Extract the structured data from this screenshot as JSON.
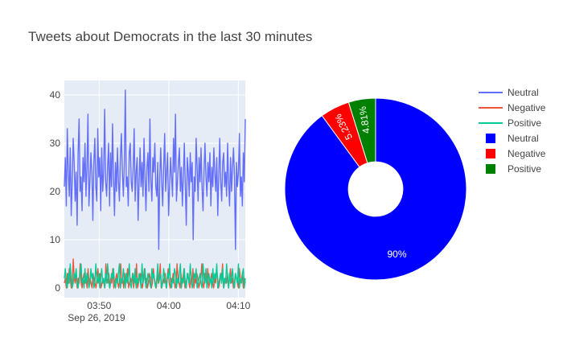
{
  "title": "Tweets about Democrats in the last 30 minutes",
  "colors": {
    "Neutral_line": "#636efa",
    "Negative_line": "#ef553b",
    "Positive_line": "#00cc96",
    "Neutral_pie": "#0000ff",
    "Negative_pie": "#ff0000",
    "Positive_pie": "#008000"
  },
  "legend": {
    "placement": "top-right",
    "line_entries": [
      "Neutral",
      "Negative",
      "Positive"
    ],
    "pie_entries": [
      "Neutral",
      "Negative",
      "Positive"
    ]
  },
  "chart_data": [
    {
      "type": "line",
      "title": "",
      "x_start": "03:45",
      "x_end": "04:11",
      "x_ticks": [
        "03:50",
        "04:00",
        "04:10"
      ],
      "x_date": "Sep 26, 2019",
      "y_ticks": [
        "0",
        "10",
        "20",
        "30",
        "40"
      ],
      "ylim": [
        -2,
        43
      ],
      "grid": true,
      "series": [
        {
          "name": "Neutral",
          "approx_mean": 22,
          "approx_min": 8,
          "approx_max": 41,
          "values": [
            21,
            27,
            17,
            33,
            24,
            19,
            29,
            15,
            22,
            31,
            26,
            18,
            24,
            13,
            28,
            35,
            20,
            23,
            16,
            27,
            22,
            30,
            19,
            25,
            36,
            17,
            22,
            28,
            24,
            14,
            26,
            31,
            21,
            18,
            33,
            23,
            27,
            16,
            29,
            20,
            24,
            37,
            22,
            19,
            25,
            30,
            17,
            28,
            21,
            34,
            23,
            15,
            26,
            20,
            29,
            22,
            18,
            27,
            32,
            24,
            19,
            26,
            41,
            21,
            23,
            17,
            28,
            30,
            22,
            20,
            25,
            33,
            18,
            24,
            27,
            14,
            22,
            29,
            21,
            26,
            19,
            31,
            23,
            16,
            25,
            28,
            20,
            35,
            22,
            18,
            27,
            24,
            30,
            21,
            19,
            26,
            8,
            23,
            29,
            22,
            17,
            25,
            32,
            20,
            24,
            28,
            15,
            21,
            27,
            23,
            19,
            31,
            24,
            36,
            18,
            22,
            26,
            29,
            20,
            25,
            17,
            23,
            30,
            21,
            13,
            27,
            24,
            19,
            28,
            22,
            26,
            10,
            23,
            20,
            31,
            25,
            18,
            27,
            22,
            29,
            21,
            16,
            24,
            30,
            23,
            19,
            26,
            22,
            28,
            17,
            25,
            21,
            29,
            24,
            20,
            27,
            15,
            23,
            31,
            22,
            18,
            26,
            28,
            21,
            24,
            19,
            30,
            22,
            17,
            27,
            20,
            25,
            29,
            23,
            8,
            26,
            21,
            24,
            32,
            19,
            23,
            17,
            28,
            22,
            35
          ]
        },
        {
          "name": "Negative",
          "approx_mean": 1.5,
          "approx_max": 6,
          "values": [
            1,
            2,
            0,
            3,
            1,
            4,
            2,
            0,
            1,
            6,
            2,
            1,
            3,
            0,
            2,
            1,
            5,
            1,
            0,
            2,
            3,
            1,
            2,
            0,
            4,
            1,
            2,
            1,
            0,
            3,
            2,
            1,
            0,
            2,
            4,
            1,
            3,
            0,
            1,
            2,
            1,
            0,
            5,
            2,
            1,
            3,
            0,
            2,
            1,
            4,
            0,
            1,
            2,
            3,
            1,
            0,
            2,
            5,
            1,
            2,
            0,
            3,
            1,
            2,
            4,
            0,
            1,
            2,
            1,
            3,
            0,
            2,
            1,
            5,
            0,
            1,
            2,
            3,
            1,
            0,
            2,
            4,
            1,
            2,
            0,
            1,
            3,
            2,
            0,
            1,
            4,
            2,
            1,
            0,
            3,
            1,
            2,
            5,
            0,
            1,
            2,
            1,
            3,
            0,
            2,
            4,
            1,
            0,
            2,
            1,
            3,
            2,
            0,
            1,
            5,
            2,
            1,
            0,
            3,
            1,
            2,
            4,
            0,
            1,
            2,
            3,
            1,
            0,
            2,
            1,
            4,
            0,
            2,
            1,
            3,
            2,
            0,
            1,
            2,
            5,
            1,
            0,
            3,
            2,
            1,
            4,
            0,
            1,
            2,
            3,
            1,
            0,
            2,
            1,
            4,
            2,
            0,
            1,
            3,
            2,
            5,
            0,
            1,
            2,
            1,
            3,
            0,
            2,
            4,
            1,
            2,
            0,
            1,
            3,
            2,
            1,
            0,
            4,
            2,
            1,
            3,
            0,
            2,
            1
          ]
        },
        {
          "name": "Positive",
          "approx_mean": 1.5,
          "approx_max": 5,
          "values": [
            2,
            4,
            1,
            0,
            3,
            1,
            5,
            2,
            0,
            1,
            3,
            2,
            4,
            1,
            0,
            2,
            3,
            5,
            1,
            2,
            0,
            4,
            1,
            3,
            2,
            0,
            1,
            4,
            2,
            3,
            0,
            1,
            5,
            2,
            1,
            3,
            0,
            2,
            4,
            1,
            2,
            0,
            3,
            1,
            5,
            2,
            0,
            1,
            3,
            2,
            4,
            1,
            0,
            2,
            1,
            3,
            5,
            0,
            2,
            1,
            4,
            2,
            0,
            3,
            1,
            2,
            5,
            1,
            0,
            2,
            3,
            1,
            4,
            0,
            2,
            1,
            3,
            2,
            0,
            5,
            1,
            2,
            4,
            0,
            1,
            3,
            2,
            1,
            0,
            4,
            2,
            3,
            1,
            0,
            2,
            5,
            1,
            2,
            3,
            0,
            1,
            4,
            2,
            1,
            0,
            3,
            2,
            5,
            1,
            0,
            2,
            1,
            4,
            3,
            0,
            2,
            1,
            3,
            5,
            0,
            2,
            1,
            4,
            1,
            0,
            3,
            2,
            1,
            5,
            2,
            0,
            1,
            3,
            2,
            4,
            0,
            1,
            2,
            3,
            1,
            0,
            5,
            2,
            1,
            4,
            0,
            2,
            3,
            1,
            2,
            0,
            4,
            1,
            3,
            2,
            5,
            0,
            1,
            2,
            3,
            1,
            4,
            0,
            2,
            1,
            5,
            2,
            0,
            3,
            1,
            2,
            4,
            1,
            0,
            3,
            2,
            1,
            5,
            0,
            2,
            1,
            3,
            4,
            0,
            2
          ]
        }
      ]
    },
    {
      "type": "pie",
      "hole": 0.3,
      "labels": [
        "Neutral",
        "Negative",
        "Positive"
      ],
      "values": [
        89.96,
        5.23,
        4.81
      ],
      "text": [
        "90%",
        "5.23%",
        "4.81%"
      ]
    }
  ]
}
